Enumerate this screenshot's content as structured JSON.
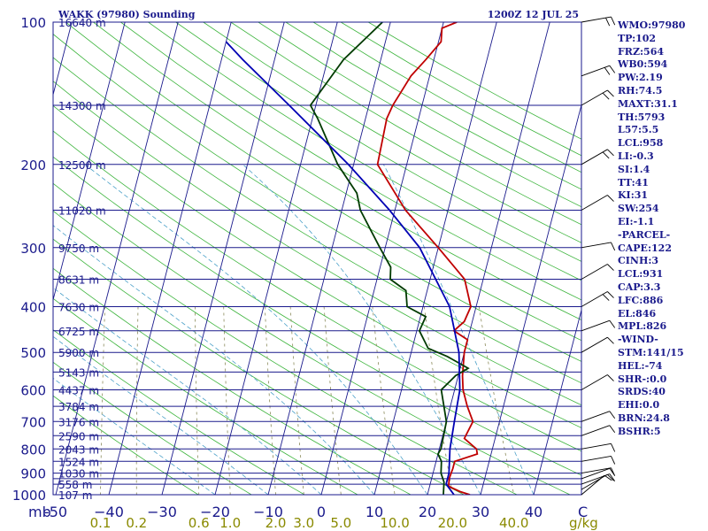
{
  "chart_data": {
    "type": "line",
    "title": "WAKK (97980) Sounding",
    "valid_time": "1200Z 12 JUL 25",
    "ylabel": "mb",
    "x_unit": "C",
    "mixing_ratio_unit": "g/kg",
    "ylim": [
      1000,
      100
    ],
    "xlim": [
      -50,
      50
    ],
    "y_log_scale": true,
    "pressure_ticks": [
      100,
      200,
      300,
      400,
      500,
      600,
      700,
      800,
      900,
      1000
    ],
    "pressure_levels": [
      100,
      150,
      200,
      250,
      300,
      350,
      400,
      450,
      500,
      550,
      600,
      650,
      700,
      750,
      800,
      850,
      900,
      925,
      950,
      1000
    ],
    "height_labels": [
      {
        "p": 100,
        "text": "16640 m"
      },
      {
        "p": 150,
        "text": "14300 m"
      },
      {
        "p": 200,
        "text": "12500 m"
      },
      {
        "p": 250,
        "text": "11020 m"
      },
      {
        "p": 300,
        "text": "9750 m"
      },
      {
        "p": 350,
        "text": "8631 m"
      },
      {
        "p": 400,
        "text": "7630 m"
      },
      {
        "p": 450,
        "text": "6725 m"
      },
      {
        "p": 500,
        "text": "5900 m"
      },
      {
        "p": 550,
        "text": "5143 m"
      },
      {
        "p": 600,
        "text": "4437 m"
      },
      {
        "p": 650,
        "text": "3784 m"
      },
      {
        "p": 700,
        "text": "3176 m"
      },
      {
        "p": 750,
        "text": "2590 m"
      },
      {
        "p": 800,
        "text": "2043 m"
      },
      {
        "p": 850,
        "text": "1524 m"
      },
      {
        "p": 900,
        "text": "1030 m"
      },
      {
        "p": 950,
        "text": "558 m"
      },
      {
        "p": 1000,
        "text": "107 m"
      }
    ],
    "temperature_ticks": [
      -50,
      -40,
      -30,
      -20,
      -10,
      0,
      10,
      20,
      30,
      40
    ],
    "temperature_tick_labels": [
      "-50",
      "−40",
      "−30",
      "−20",
      "−10",
      "0",
      "10",
      "20",
      "30",
      "40"
    ],
    "mixing_ratio_ticks": [
      0.1,
      0.2,
      0.6,
      1.0,
      2.0,
      3.0,
      5.0,
      10.0,
      20.0,
      40.0
    ],
    "mixing_ratio_labels": [
      "0.1",
      "0.2",
      "0.6",
      "1.0",
      "2.0",
      "3.0",
      "5.0",
      "10.0",
      "20.0",
      "40.0"
    ],
    "series": [
      {
        "role": "temperature",
        "color": "#c00000",
        "points": [
          {
            "p": 1000,
            "t": 28.0
          },
          {
            "p": 985,
            "t": 26.0
          },
          {
            "p": 960,
            "t": 23.6
          },
          {
            "p": 925,
            "t": 23.3
          },
          {
            "p": 880,
            "t": 23.5
          },
          {
            "p": 850,
            "t": 23.5
          },
          {
            "p": 820,
            "t": 27.4
          },
          {
            "p": 800,
            "t": 27.0
          },
          {
            "p": 760,
            "t": 24.2
          },
          {
            "p": 700,
            "t": 25.0
          },
          {
            "p": 650,
            "t": 23.2
          },
          {
            "p": 600,
            "t": 21.6
          },
          {
            "p": 560,
            "t": 20.8
          },
          {
            "p": 500,
            "t": 20.0
          },
          {
            "p": 470,
            "t": 20.0
          },
          {
            "p": 450,
            "t": 17.0
          },
          {
            "p": 430,
            "t": 18.5
          },
          {
            "p": 400,
            "t": 19.0
          },
          {
            "p": 350,
            "t": 16.5
          },
          {
            "p": 300,
            "t": 10.0
          },
          {
            "p": 250,
            "t": 2.0
          },
          {
            "p": 200,
            "t": -5.5
          },
          {
            "p": 160,
            "t": -6.0
          },
          {
            "p": 150,
            "t": -5.5
          },
          {
            "p": 130,
            "t": -3.5
          },
          {
            "p": 120,
            "t": -1.5
          },
          {
            "p": 110,
            "t": 0.5
          },
          {
            "p": 103,
            "t": 0.0
          },
          {
            "p": 100,
            "t": 2.5
          }
        ]
      },
      {
        "role": "dewpoint",
        "color": "#003a00",
        "points": [
          {
            "p": 1000,
            "t": 23.0
          },
          {
            "p": 940,
            "t": 22.5
          },
          {
            "p": 900,
            "t": 21.5
          },
          {
            "p": 850,
            "t": 21.0
          },
          {
            "p": 820,
            "t": 20.0
          },
          {
            "p": 800,
            "t": 20.3
          },
          {
            "p": 700,
            "t": 20.0
          },
          {
            "p": 600,
            "t": 17.5
          },
          {
            "p": 560,
            "t": 19.5
          },
          {
            "p": 540,
            "t": 21.5
          },
          {
            "p": 510,
            "t": 17.0
          },
          {
            "p": 490,
            "t": 13.0
          },
          {
            "p": 450,
            "t": 10.5
          },
          {
            "p": 420,
            "t": 11.0
          },
          {
            "p": 400,
            "t": 7.0
          },
          {
            "p": 370,
            "t": 6.0
          },
          {
            "p": 350,
            "t": 2.5
          },
          {
            "p": 330,
            "t": 2.0
          },
          {
            "p": 300,
            "t": -1.0
          },
          {
            "p": 250,
            "t": -6.5
          },
          {
            "p": 230,
            "t": -8.0
          },
          {
            "p": 200,
            "t": -13.0
          },
          {
            "p": 160,
            "t": -19.0
          },
          {
            "p": 150,
            "t": -21.0
          },
          {
            "p": 120,
            "t": -17.0
          },
          {
            "p": 100,
            "t": -11.5
          }
        ]
      },
      {
        "role": "parcel",
        "color": "#0000b4",
        "points": [
          {
            "p": 1000,
            "t": 25.0
          },
          {
            "p": 950,
            "t": 23.0
          },
          {
            "p": 900,
            "t": 23.0
          },
          {
            "p": 800,
            "t": 22.0
          },
          {
            "p": 700,
            "t": 21.5
          },
          {
            "p": 600,
            "t": 21.0
          },
          {
            "p": 500,
            "t": 19.0
          },
          {
            "p": 400,
            "t": 15.0
          },
          {
            "p": 300,
            "t": 6.5
          },
          {
            "p": 250,
            "t": -1.0
          },
          {
            "p": 200,
            "t": -11.0
          },
          {
            "p": 150,
            "t": -25.0
          },
          {
            "p": 120,
            "t": -36.0
          },
          {
            "p": 110,
            "t": -40.0
          }
        ]
      }
    ],
    "winds": [
      {
        "p": 100,
        "dir": 80,
        "kt": 15
      },
      {
        "p": 130,
        "dir": 70,
        "kt": 15
      },
      {
        "p": 150,
        "dir": 60,
        "kt": 15
      },
      {
        "p": 200,
        "dir": 60,
        "kt": 15
      },
      {
        "p": 250,
        "dir": 60,
        "kt": 10
      },
      {
        "p": 300,
        "dir": 80,
        "kt": 10
      },
      {
        "p": 350,
        "dir": 60,
        "kt": 10
      },
      {
        "p": 400,
        "dir": 60,
        "kt": 15
      },
      {
        "p": 450,
        "dir": 70,
        "kt": 10
      },
      {
        "p": 500,
        "dir": 60,
        "kt": 10
      },
      {
        "p": 600,
        "dir": 60,
        "kt": 10
      },
      {
        "p": 700,
        "dir": 70,
        "kt": 10
      },
      {
        "p": 750,
        "dir": 70,
        "kt": 10
      },
      {
        "p": 800,
        "dir": 80,
        "kt": 10
      },
      {
        "p": 850,
        "dir": 80,
        "kt": 10
      },
      {
        "p": 900,
        "dir": 80,
        "kt": 10
      },
      {
        "p": 925,
        "dir": 70,
        "kt": 10
      },
      {
        "p": 950,
        "dir": 70,
        "kt": 10
      },
      {
        "p": 975,
        "dir": 60,
        "kt": 10
      },
      {
        "p": 1000,
        "dir": 50,
        "kt": 10
      }
    ],
    "indices": [
      "WMO:97980",
      "TP:102",
      "FRZ:564",
      "WB0:594",
      "PW:2.19",
      "RH:74.5",
      "MAXT:31.1",
      "TH:5793",
      "L57:5.5",
      "LCL:958",
      "LI:-0.3",
      "SI:1.4",
      "TT:41",
      "KI:31",
      "SW:254",
      "EI:-1.1",
      "-PARCEL-",
      "CAPE:122",
      "CINH:3",
      "LCL:931",
      "CAP:3.3",
      "LFC:886",
      "EL:846",
      "MPL:826",
      "-WIND-",
      "STM:141/15",
      "HEL:-74",
      "SHR-:0.0",
      "SRDS:40",
      "EHI:0.0",
      "BRN:24.8",
      "BSHR:5"
    ]
  },
  "colors": {
    "frame": "#1a1a8c",
    "isobar": "#1a1a8c",
    "isotherm": "#1a1a8c",
    "dry_adiabat": "#3cb43c",
    "moist_adiabat": "#4aa0c8",
    "mixing_ratio": "#8a8a5a",
    "temperature": "#c00000",
    "dewpoint": "#003a00",
    "parcel": "#0000b4",
    "mixing_ratio_label": "#8a8a00"
  }
}
